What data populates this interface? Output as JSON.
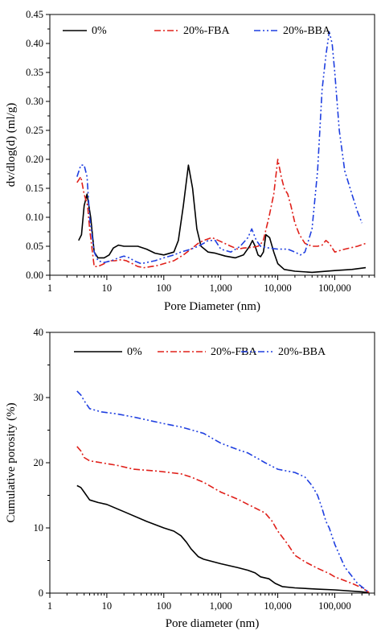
{
  "chart_data": [
    {
      "type": "line",
      "xscale": "log",
      "xlim": [
        1,
        500000
      ],
      "ylim": [
        0,
        0.45
      ],
      "xlabel": "Pore Diameter (nm)",
      "ylabel": "dv/dlog(d) (ml/g)",
      "x_tick_labels": [
        "1",
        "10",
        "100",
        "1,000",
        "10,000",
        "100,000"
      ],
      "y_tick_labels": [
        "0.00",
        "0.05",
        "0.10",
        "0.15",
        "0.20",
        "0.25",
        "0.30",
        "0.35",
        "0.40",
        "0.45"
      ],
      "legend_position": "top",
      "series": [
        {
          "name": "0%",
          "color": "#000000",
          "dash": "solid",
          "points": [
            [
              3.2,
              0.06
            ],
            [
              3.6,
              0.07
            ],
            [
              4.0,
              0.12
            ],
            [
              4.5,
              0.14
            ],
            [
              5.2,
              0.1
            ],
            [
              6,
              0.04
            ],
            [
              7,
              0.03
            ],
            [
              9,
              0.03
            ],
            [
              11,
              0.035
            ],
            [
              13,
              0.047
            ],
            [
              16,
              0.052
            ],
            [
              20,
              0.05
            ],
            [
              25,
              0.05
            ],
            [
              35,
              0.05
            ],
            [
              50,
              0.045
            ],
            [
              70,
              0.038
            ],
            [
              100,
              0.035
            ],
            [
              150,
              0.04
            ],
            [
              180,
              0.06
            ],
            [
              220,
              0.12
            ],
            [
              270,
              0.19
            ],
            [
              320,
              0.15
            ],
            [
              380,
              0.08
            ],
            [
              450,
              0.05
            ],
            [
              600,
              0.04
            ],
            [
              800,
              0.038
            ],
            [
              1200,
              0.033
            ],
            [
              1800,
              0.03
            ],
            [
              2500,
              0.035
            ],
            [
              3200,
              0.05
            ],
            [
              3600,
              0.06
            ],
            [
              4000,
              0.05
            ],
            [
              4500,
              0.035
            ],
            [
              5000,
              0.032
            ],
            [
              5600,
              0.04
            ],
            [
              6200,
              0.07
            ],
            [
              7200,
              0.065
            ],
            [
              8500,
              0.04
            ],
            [
              10000,
              0.02
            ],
            [
              13000,
              0.01
            ],
            [
              20000,
              0.007
            ],
            [
              40000,
              0.005
            ],
            [
              100000,
              0.008
            ],
            [
              200000,
              0.01
            ],
            [
              350000,
              0.013
            ]
          ]
        },
        {
          "name": "20%-FBA",
          "color": "#e0201a",
          "dash": "dashdot",
          "points": [
            [
              3,
              0.16
            ],
            [
              3.5,
              0.17
            ],
            [
              4,
              0.14
            ],
            [
              4.6,
              0.12
            ],
            [
              5,
              0.08
            ],
            [
              6,
              0.015
            ],
            [
              7,
              0.015
            ],
            [
              9,
              0.02
            ],
            [
              11,
              0.025
            ],
            [
              14,
              0.025
            ],
            [
              18,
              0.027
            ],
            [
              22,
              0.025
            ],
            [
              28,
              0.02
            ],
            [
              35,
              0.015
            ],
            [
              45,
              0.013
            ],
            [
              60,
              0.015
            ],
            [
              80,
              0.017
            ],
            [
              100,
              0.02
            ],
            [
              150,
              0.025
            ],
            [
              220,
              0.035
            ],
            [
              300,
              0.045
            ],
            [
              400,
              0.055
            ],
            [
              500,
              0.06
            ],
            [
              700,
              0.065
            ],
            [
              1000,
              0.058
            ],
            [
              1500,
              0.05
            ],
            [
              2000,
              0.045
            ],
            [
              2500,
              0.047
            ],
            [
              3500,
              0.048
            ],
            [
              4500,
              0.05
            ],
            [
              5500,
              0.058
            ],
            [
              7000,
              0.1
            ],
            [
              8500,
              0.14
            ],
            [
              10000,
              0.2
            ],
            [
              11500,
              0.17
            ],
            [
              13000,
              0.15
            ],
            [
              15000,
              0.14
            ],
            [
              17000,
              0.12
            ],
            [
              20000,
              0.09
            ],
            [
              24000,
              0.07
            ],
            [
              30000,
              0.055
            ],
            [
              40000,
              0.05
            ],
            [
              50000,
              0.05
            ],
            [
              60000,
              0.052
            ],
            [
              70000,
              0.06
            ],
            [
              80000,
              0.055
            ],
            [
              100000,
              0.04
            ],
            [
              150000,
              0.045
            ],
            [
              250000,
              0.05
            ],
            [
              350000,
              0.055
            ]
          ]
        },
        {
          "name": "20%-BBA",
          "color": "#1f3fe0",
          "dash": "dashdotdot",
          "points": [
            [
              3,
              0.17
            ],
            [
              3.5,
              0.19
            ],
            [
              4,
              0.19
            ],
            [
              4.5,
              0.17
            ],
            [
              5,
              0.1
            ],
            [
              6,
              0.04
            ],
            [
              7,
              0.025
            ],
            [
              9,
              0.022
            ],
            [
              12,
              0.025
            ],
            [
              16,
              0.03
            ],
            [
              20,
              0.033
            ],
            [
              25,
              0.03
            ],
            [
              30,
              0.025
            ],
            [
              40,
              0.02
            ],
            [
              50,
              0.022
            ],
            [
              70,
              0.025
            ],
            [
              100,
              0.03
            ],
            [
              150,
              0.035
            ],
            [
              200,
              0.04
            ],
            [
              300,
              0.045
            ],
            [
              400,
              0.05
            ],
            [
              500,
              0.055
            ],
            [
              600,
              0.06
            ],
            [
              800,
              0.06
            ],
            [
              1000,
              0.045
            ],
            [
              1500,
              0.04
            ],
            [
              2200,
              0.05
            ],
            [
              3000,
              0.065
            ],
            [
              3500,
              0.08
            ],
            [
              4200,
              0.06
            ],
            [
              5000,
              0.05
            ],
            [
              7000,
              0.047
            ],
            [
              10000,
              0.045
            ],
            [
              15000,
              0.045
            ],
            [
              20000,
              0.04
            ],
            [
              25000,
              0.035
            ],
            [
              30000,
              0.04
            ],
            [
              40000,
              0.08
            ],
            [
              50000,
              0.18
            ],
            [
              60000,
              0.32
            ],
            [
              70000,
              0.38
            ],
            [
              80000,
              0.42
            ],
            [
              90000,
              0.4
            ],
            [
              100000,
              0.35
            ],
            [
              120000,
              0.25
            ],
            [
              150000,
              0.18
            ],
            [
              200000,
              0.14
            ],
            [
              250000,
              0.11
            ],
            [
              300000,
              0.09
            ]
          ]
        }
      ]
    },
    {
      "type": "line",
      "xscale": "log",
      "xlim": [
        1,
        500000
      ],
      "ylim": [
        0,
        40
      ],
      "xlabel": "Pore diameter (nm)",
      "ylabel": "Cumulative porosity (%)",
      "x_tick_labels": [
        "1",
        "10",
        "100",
        "1,000",
        "10,000",
        "100,000"
      ],
      "y_tick_labels": [
        "0",
        "10",
        "20",
        "30",
        "40"
      ],
      "legend_position": "top",
      "series": [
        {
          "name": "0%",
          "color": "#000000",
          "dash": "solid",
          "points": [
            [
              3,
              16.5
            ],
            [
              3.5,
              16.2
            ],
            [
              4,
              15.5
            ],
            [
              5,
              14.3
            ],
            [
              7,
              13.9
            ],
            [
              10,
              13.6
            ],
            [
              20,
              12.5
            ],
            [
              50,
              11.0
            ],
            [
              100,
              10.0
            ],
            [
              150,
              9.5
            ],
            [
              200,
              8.8
            ],
            [
              250,
              7.8
            ],
            [
              300,
              6.8
            ],
            [
              400,
              5.6
            ],
            [
              500,
              5.2
            ],
            [
              1000,
              4.5
            ],
            [
              2000,
              3.9
            ],
            [
              3000,
              3.5
            ],
            [
              4000,
              3.1
            ],
            [
              5000,
              2.5
            ],
            [
              7000,
              2.2
            ],
            [
              9000,
              1.5
            ],
            [
              12000,
              1.0
            ],
            [
              20000,
              0.8
            ],
            [
              50000,
              0.6
            ],
            [
              100000,
              0.5
            ],
            [
              300000,
              0.2
            ],
            [
              400000,
              0.05
            ]
          ]
        },
        {
          "name": "20%-FBA",
          "color": "#e0201a",
          "dash": "dashdot",
          "points": [
            [
              3,
              22.5
            ],
            [
              3.5,
              21.8
            ],
            [
              4,
              20.8
            ],
            [
              5,
              20.3
            ],
            [
              8,
              20.0
            ],
            [
              15,
              19.6
            ],
            [
              30,
              19.0
            ],
            [
              80,
              18.7
            ],
            [
              200,
              18.3
            ],
            [
              300,
              17.8
            ],
            [
              500,
              17.0
            ],
            [
              1000,
              15.5
            ],
            [
              2000,
              14.4
            ],
            [
              3000,
              13.6
            ],
            [
              6000,
              12.3
            ],
            [
              8000,
              11.0
            ],
            [
              10000,
              9.5
            ],
            [
              15000,
              7.5
            ],
            [
              20000,
              5.8
            ],
            [
              30000,
              4.8
            ],
            [
              50000,
              3.8
            ],
            [
              80000,
              3.0
            ],
            [
              100000,
              2.5
            ],
            [
              200000,
              1.5
            ],
            [
              300000,
              0.8
            ],
            [
              400000,
              0.1
            ]
          ]
        },
        {
          "name": "20%-BBA",
          "color": "#1f3fe0",
          "dash": "dashdotdot",
          "points": [
            [
              3,
              31
            ],
            [
              3.5,
              30.4
            ],
            [
              4,
              29.5
            ],
            [
              5,
              28.3
            ],
            [
              8,
              27.8
            ],
            [
              15,
              27.5
            ],
            [
              30,
              27.0
            ],
            [
              100,
              26.0
            ],
            [
              200,
              25.5
            ],
            [
              500,
              24.5
            ],
            [
              1000,
              23.0
            ],
            [
              2000,
              22.0
            ],
            [
              3000,
              21.5
            ],
            [
              6000,
              20.0
            ],
            [
              10000,
              19.0
            ],
            [
              20000,
              18.5
            ],
            [
              30000,
              17.8
            ],
            [
              40000,
              16.5
            ],
            [
              50000,
              15.0
            ],
            [
              60000,
              13.0
            ],
            [
              70000,
              11.0
            ],
            [
              80000,
              10.0
            ],
            [
              100000,
              7.5
            ],
            [
              150000,
              4.0
            ],
            [
              250000,
              1.5
            ],
            [
              400000,
              0.1
            ]
          ]
        }
      ]
    }
  ]
}
